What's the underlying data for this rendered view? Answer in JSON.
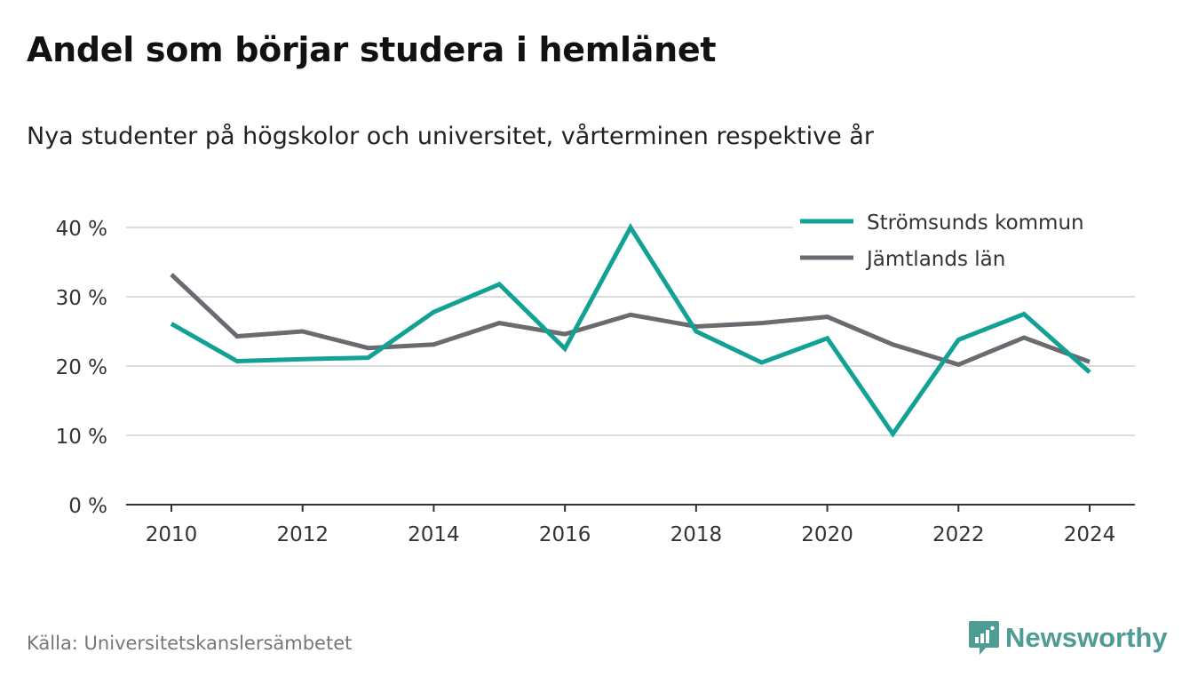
{
  "title": "Andel som börjar studera i hemlänet",
  "subtitle": "Nya studenter på högskolor och universitet, vårterminen respektive år",
  "source": "Källa: Universitetskanslersämbetet",
  "brand": {
    "name": "Newsworthy",
    "icon": "newsworthy-logo-icon",
    "color": "#4e9c94"
  },
  "chart_data": {
    "type": "line",
    "x": [
      2010,
      2011,
      2012,
      2013,
      2014,
      2015,
      2016,
      2017,
      2018,
      2019,
      2020,
      2021,
      2022,
      2023,
      2024
    ],
    "xlim": [
      2010,
      2024
    ],
    "x_ticks": [
      2010,
      2012,
      2014,
      2016,
      2018,
      2020,
      2022,
      2024
    ],
    "x_tick_labels": [
      "2010",
      "2012",
      "2014",
      "2016",
      "2018",
      "2020",
      "2022",
      "2024"
    ],
    "ylim": [
      0,
      40
    ],
    "y_ticks": [
      0,
      10,
      20,
      30,
      40
    ],
    "y_tick_labels": [
      "0 %",
      "10 %",
      "20 %",
      "30 %",
      "40 %"
    ],
    "grid": "horizontal",
    "legend_position": "top-right",
    "series": [
      {
        "name": "Strömsunds kommun",
        "color": "#12a194",
        "values": [
          26.1,
          20.7,
          21.0,
          21.2,
          27.8,
          31.8,
          22.5,
          40.0,
          25.0,
          20.5,
          24.0,
          10.2,
          23.8,
          27.5,
          19.1
        ]
      },
      {
        "name": "Jämtlands län",
        "color": "#6b6a70",
        "values": [
          33.2,
          24.3,
          25.0,
          22.6,
          23.1,
          26.2,
          24.6,
          27.4,
          25.7,
          26.2,
          27.1,
          23.1,
          20.2,
          24.1,
          20.6
        ]
      }
    ]
  }
}
